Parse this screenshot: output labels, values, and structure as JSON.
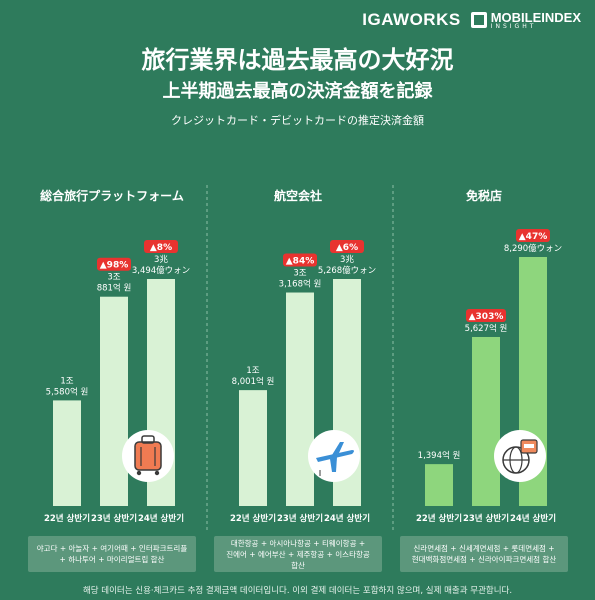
{
  "brand": {
    "left": "IGAWORKS",
    "right_main": "MOBILEINDEX",
    "right_sub": "INSIGHT"
  },
  "title": "旅行業界は過去最高の大好況",
  "subtitle": "上半期過去最高の決済金額を記録",
  "note": "クレジットカード・デビットカードの推定決済金額",
  "footer": "해당 데이터는 신용·체크카드 추정 결제금액 데이터입니다. 이외 결제 데이터는 포함하지 않으며, 실제 매출과 무관합니다.",
  "colors": {
    "background": "#2e7b5c",
    "bar_light": "#d9f2d5",
    "bar_green": "#8ed67d",
    "badge_red": "#e8332f",
    "chip": "#5c977c"
  },
  "chart_data": [
    {
      "type": "bar",
      "title": "総合旅行プラットフォーム",
      "categories": [
        "22년 상반기",
        "23년 상반기",
        "24년 상반기"
      ],
      "values": [
        15580,
        30881,
        33494
      ],
      "value_labels": [
        [
          "1조",
          "5,580억 원"
        ],
        [
          "3조",
          "881억 원"
        ],
        [
          "3兆",
          "3,494億ウォン"
        ]
      ],
      "badges": [
        "",
        "▲98%",
        "▲8%"
      ],
      "icon": "suitcase-icon",
      "bar_color": "#d9f2d5",
      "members": [
        "야고다 + 아놀자 + 여기어때 + 인터파크트리플",
        "+ 하나투어 + 마이리얼트립 합산"
      ]
    },
    {
      "type": "bar",
      "title": "航空会社",
      "categories": [
        "22년 상반기",
        "23년 상반기",
        "24년 상반기"
      ],
      "values": [
        18001,
        33168,
        35268
      ],
      "value_labels": [
        [
          "1조",
          "8,001억 원"
        ],
        [
          "3조",
          "3,168억 원"
        ],
        [
          "3兆",
          "5,268億ウォン"
        ]
      ],
      "badges": [
        "",
        "▲84%",
        "▲6%"
      ],
      "icon": "airplane-icon",
      "bar_color": "#d9f2d5",
      "members": [
        "대한항공 + 아시아나항공 + 티웨이항공 +",
        "진에어 + 에어부산 + 제주항공 + 이스타항공",
        "합산"
      ]
    },
    {
      "type": "bar",
      "title": "免税店",
      "categories": [
        "22년 상반기",
        "23년 상반기",
        "24년 상반기"
      ],
      "values": [
        1394,
        5627,
        8290
      ],
      "value_labels": [
        [
          "1,394억 원"
        ],
        [
          "5,627억 원"
        ],
        [
          "8,290億ウォン"
        ]
      ],
      "badges": [
        "",
        "▲303%",
        "▲47%"
      ],
      "icon": "globe-tax-icon",
      "bar_color": "#8ed67d",
      "members": [
        "신라면세점 + 신세계면세점 + 롯데면세점 +",
        "현대백화점면세점 + 신라아이파크면세점 합산"
      ]
    }
  ]
}
